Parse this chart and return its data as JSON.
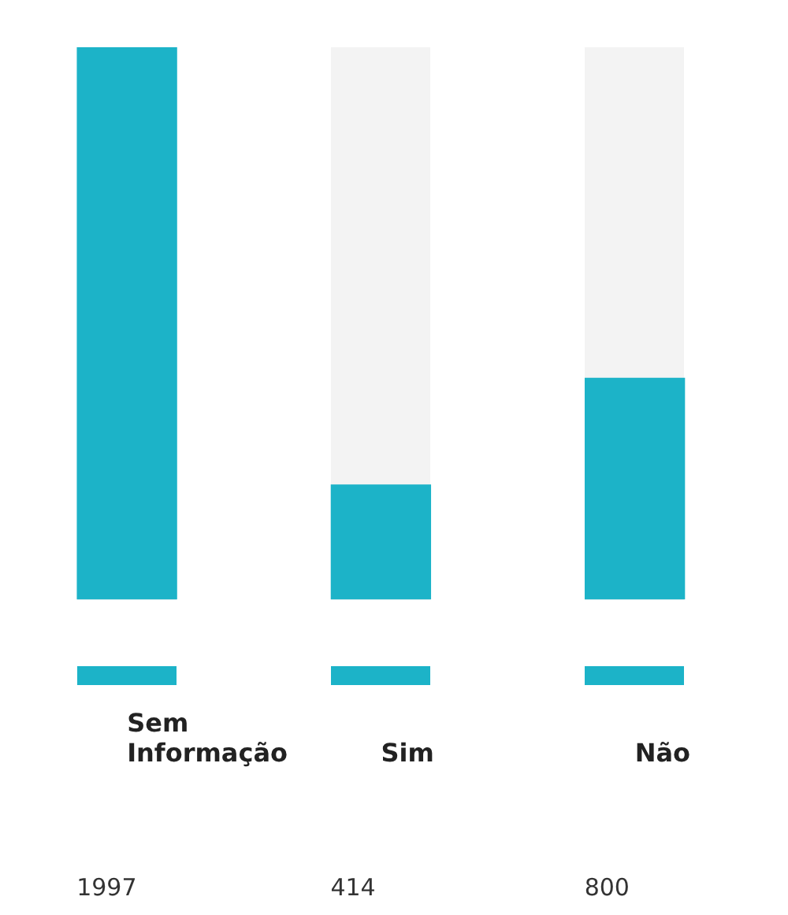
{
  "chart_data": {
    "type": "bar",
    "categories": [
      "Sem Informação",
      "Sim",
      "Não"
    ],
    "values": [
      1997,
      414,
      800
    ],
    "color": "#1cb3c8",
    "data_labels": true,
    "grid": false,
    "legend": false
  }
}
